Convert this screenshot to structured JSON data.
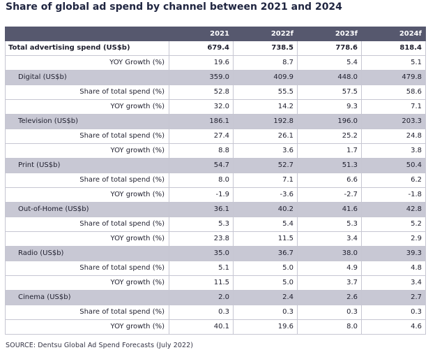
{
  "title": "Share of global ad spend by channel between 2021 and 2024",
  "table": {
    "headers": [
      "",
      "2021",
      "2022f",
      "2023f",
      "2024f"
    ],
    "rows": [
      {
        "kind": "total",
        "label": "Total advertising spend (US$b)",
        "values": [
          "679.4",
          "738.5",
          "778.6",
          "818.4"
        ]
      },
      {
        "kind": "sub",
        "label": "YOY Growth (%)",
        "values": [
          "19.6",
          "8.7",
          "5.4",
          "5.1"
        ]
      },
      {
        "kind": "channel",
        "label": "Digital (US$b)",
        "values": [
          "359.0",
          "409.9",
          "448.0",
          "479.8"
        ]
      },
      {
        "kind": "sub",
        "label": "Share of total spend (%)",
        "values": [
          "52.8",
          "55.5",
          "57.5",
          "58.6"
        ]
      },
      {
        "kind": "sub",
        "label": "YOY growth (%)",
        "values": [
          "32.0",
          "14.2",
          "9.3",
          "7.1"
        ]
      },
      {
        "kind": "channel",
        "label": "Television (US$b)",
        "values": [
          "186.1",
          "192.8",
          "196.0",
          "203.3"
        ]
      },
      {
        "kind": "sub",
        "label": "Share of total spend (%)",
        "values": [
          "27.4",
          "26.1",
          "25.2",
          "24.8"
        ]
      },
      {
        "kind": "sub",
        "label": "YOY growth (%)",
        "values": [
          "8.8",
          "3.6",
          "1.7",
          "3.8"
        ]
      },
      {
        "kind": "channel",
        "label": "Print (US$b)",
        "values": [
          "54.7",
          "52.7",
          "51.3",
          "50.4"
        ]
      },
      {
        "kind": "sub",
        "label": "Share of total spend (%)",
        "values": [
          "8.0",
          "7.1",
          "6.6",
          "6.2"
        ]
      },
      {
        "kind": "sub",
        "label": "YOY growth (%)",
        "values": [
          "-1.9",
          "-3.6",
          "-2.7",
          "-1.8"
        ]
      },
      {
        "kind": "channel",
        "label": "Out-of-Home (US$b)",
        "values": [
          "36.1",
          "40.2",
          "41.6",
          "42.8"
        ]
      },
      {
        "kind": "sub",
        "label": "Share of total spend (%)",
        "values": [
          "5.3",
          "5.4",
          "5.3",
          "5.2"
        ]
      },
      {
        "kind": "sub",
        "label": "YOY growth (%)",
        "values": [
          "23.8",
          "11.5",
          "3.4",
          "2.9"
        ]
      },
      {
        "kind": "channel",
        "label": "Radio (US$b)",
        "values": [
          "35.0",
          "36.7",
          "38.0",
          "39.3"
        ]
      },
      {
        "kind": "sub",
        "label": "Share of total spend (%)",
        "values": [
          "5.1",
          "5.0",
          "4.9",
          "4.8"
        ]
      },
      {
        "kind": "sub",
        "label": "YOY growth (%)",
        "values": [
          "11.5",
          "5.0",
          "3.7",
          "3.4"
        ]
      },
      {
        "kind": "channel",
        "label": "Cinema (US$b)",
        "values": [
          "2.0",
          "2.4",
          "2.6",
          "2.7"
        ]
      },
      {
        "kind": "sub",
        "label": "Share of total spend (%)",
        "values": [
          "0.3",
          "0.3",
          "0.3",
          "0.3"
        ]
      },
      {
        "kind": "sub",
        "label": "YOY growth (%)",
        "values": [
          "40.1",
          "19.6",
          "8.0",
          "4.6"
        ]
      }
    ]
  },
  "source": "SOURCE: Dentsu Global Ad Spend Forecasts (July 2022)",
  "colors": {
    "header_bg": "#56586e",
    "channel_row_bg": "#c8c8d4",
    "title_color": "#1f2540"
  }
}
